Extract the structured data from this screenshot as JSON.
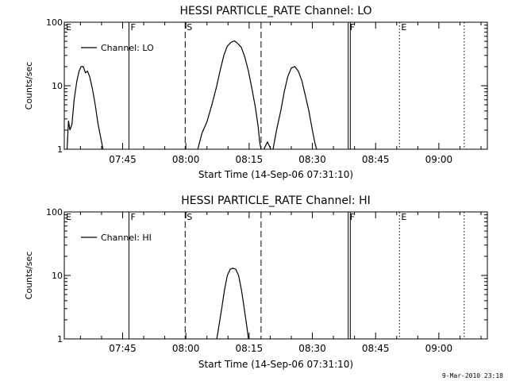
{
  "footer_timestamp": "9-Mar-2010 23:18",
  "chart_data": [
    {
      "type": "line",
      "title": "HESSI PARTICLE_RATE Channel: LO",
      "xlabel": "Start Time (14-Sep-06 07:31:10)",
      "ylabel": "Counts/sec",
      "y_scale": "log",
      "ylim": [
        1,
        100
      ],
      "y_ticks": [
        {
          "value": 1,
          "label": "1"
        },
        {
          "value": 10,
          "label": "10"
        },
        {
          "value": 100,
          "label": "100"
        }
      ],
      "xlim": [
        "07:31:10",
        "09:11:30"
      ],
      "x_ticks": [
        {
          "value": "07:45",
          "label": "07:45"
        },
        {
          "value": "08:00",
          "label": "08:00"
        },
        {
          "value": "08:15",
          "label": "08:15"
        },
        {
          "value": "08:30",
          "label": "08:30"
        },
        {
          "value": "08:45",
          "label": "08:45"
        },
        {
          "value": "09:00",
          "label": "09:00"
        }
      ],
      "legend": {
        "position": "top-left",
        "entries": [
          "Channel: LO"
        ]
      },
      "series": [
        {
          "name": "Channel: LO",
          "segments": [
            [
              [
                "07:31:50",
                1.0
              ],
              [
                "07:32:10",
                2.8
              ],
              [
                "07:32:30",
                2.0
              ],
              [
                "07:33:00",
                2.5
              ],
              [
                "07:33:30",
                6
              ],
              [
                "07:34:10",
                12
              ],
              [
                "07:34:40",
                17
              ],
              [
                "07:35:10",
                20
              ],
              [
                "07:35:40",
                20
              ],
              [
                "07:36:10",
                16
              ],
              [
                "07:36:40",
                17
              ],
              [
                "07:37:10",
                14
              ],
              [
                "07:37:50",
                9
              ],
              [
                "07:38:30",
                5
              ],
              [
                "07:39:10",
                2.5
              ],
              [
                "07:39:50",
                1.5
              ],
              [
                "07:40:20",
                1.0
              ]
            ],
            [
              [
                "08:02:50",
                1.0
              ],
              [
                "08:03:50",
                1.8
              ],
              [
                "08:05:00",
                2.7
              ],
              [
                "08:06:10",
                5
              ],
              [
                "08:07:20",
                10
              ],
              [
                "08:08:10",
                18
              ],
              [
                "08:09:00",
                30
              ],
              [
                "08:09:50",
                42
              ],
              [
                "08:10:40",
                48
              ],
              [
                "08:11:30",
                51
              ],
              [
                "08:12:20",
                46
              ],
              [
                "08:13:10",
                40
              ],
              [
                "08:14:00",
                28
              ],
              [
                "08:14:50",
                17
              ],
              [
                "08:15:40",
                9
              ],
              [
                "08:16:30",
                4.5
              ],
              [
                "08:17:10",
                2.2
              ],
              [
                "08:17:30",
                1.3
              ],
              [
                "08:17:50",
                1.0
              ]
            ],
            [
              [
                "08:18:30",
                1.0
              ],
              [
                "08:19:20",
                1.3
              ],
              [
                "08:20:10",
                1.0
              ]
            ],
            [
              [
                "08:20:40",
                1.0
              ],
              [
                "08:21:30",
                2.0
              ],
              [
                "08:22:30",
                4
              ],
              [
                "08:23:20",
                8
              ],
              [
                "08:24:10",
                14
              ],
              [
                "08:25:00",
                19
              ],
              [
                "08:25:50",
                20
              ],
              [
                "08:26:40",
                17
              ],
              [
                "08:27:30",
                12
              ],
              [
                "08:28:20",
                7
              ],
              [
                "08:29:10",
                4
              ],
              [
                "08:30:00",
                2
              ],
              [
                "08:30:40",
                1.2
              ],
              [
                "08:31:00",
                1.0
              ]
            ]
          ]
        }
      ],
      "markers": [
        {
          "label": "E",
          "time": "07:31:10",
          "style": "solid"
        },
        {
          "label": "F",
          "time": "07:46:30",
          "style": "solid"
        },
        {
          "label": "S",
          "time": "07:59:50",
          "style": "dashed"
        },
        {
          "label": "",
          "time": "08:17:50",
          "style": "dashed"
        },
        {
          "label": "F",
          "time": "08:38:30",
          "style": "solid"
        },
        {
          "label": "",
          "time": "08:39:00",
          "style": "solid"
        },
        {
          "label": "E",
          "time": "08:50:40",
          "style": "dotted"
        },
        {
          "label": "",
          "time": "09:06:00",
          "style": "dotted"
        }
      ]
    },
    {
      "type": "line",
      "title": "HESSI PARTICLE_RATE Channel: HI",
      "xlabel": "Start Time (14-Sep-06 07:31:10)",
      "ylabel": "Counts/sec",
      "y_scale": "log",
      "ylim": [
        1,
        100
      ],
      "y_ticks": [
        {
          "value": 1,
          "label": "1"
        },
        {
          "value": 10,
          "label": "10"
        },
        {
          "value": 100,
          "label": "100"
        }
      ],
      "xlim": [
        "07:31:10",
        "09:11:30"
      ],
      "x_ticks": [
        {
          "value": "07:45",
          "label": "07:45"
        },
        {
          "value": "08:00",
          "label": "08:00"
        },
        {
          "value": "08:15",
          "label": "08:15"
        },
        {
          "value": "08:30",
          "label": "08:30"
        },
        {
          "value": "08:45",
          "label": "08:45"
        },
        {
          "value": "09:00",
          "label": "09:00"
        }
      ],
      "legend": {
        "position": "top-left",
        "entries": [
          "Channel: HI"
        ]
      },
      "series": [
        {
          "name": "Channel: HI",
          "segments": [
            [
              [
                "08:07:20",
                1.0
              ],
              [
                "08:07:50",
                1.6
              ],
              [
                "08:08:30",
                3
              ],
              [
                "08:09:10",
                6
              ],
              [
                "08:09:50",
                10
              ],
              [
                "08:10:30",
                12.5
              ],
              [
                "08:11:10",
                13
              ],
              [
                "08:11:50",
                12.5
              ],
              [
                "08:12:30",
                10
              ],
              [
                "08:13:10",
                6
              ],
              [
                "08:13:50",
                3
              ],
              [
                "08:14:30",
                1.5
              ],
              [
                "08:14:50",
                1.0
              ]
            ]
          ]
        }
      ],
      "markers": [
        {
          "label": "E",
          "time": "07:31:10",
          "style": "solid"
        },
        {
          "label": "F",
          "time": "07:46:30",
          "style": "solid"
        },
        {
          "label": "S",
          "time": "07:59:50",
          "style": "dashed"
        },
        {
          "label": "",
          "time": "08:17:50",
          "style": "dashed"
        },
        {
          "label": "F",
          "time": "08:38:30",
          "style": "solid"
        },
        {
          "label": "",
          "time": "08:39:00",
          "style": "solid"
        },
        {
          "label": "E",
          "time": "08:50:40",
          "style": "dotted"
        },
        {
          "label": "",
          "time": "09:06:00",
          "style": "dotted"
        }
      ]
    }
  ]
}
